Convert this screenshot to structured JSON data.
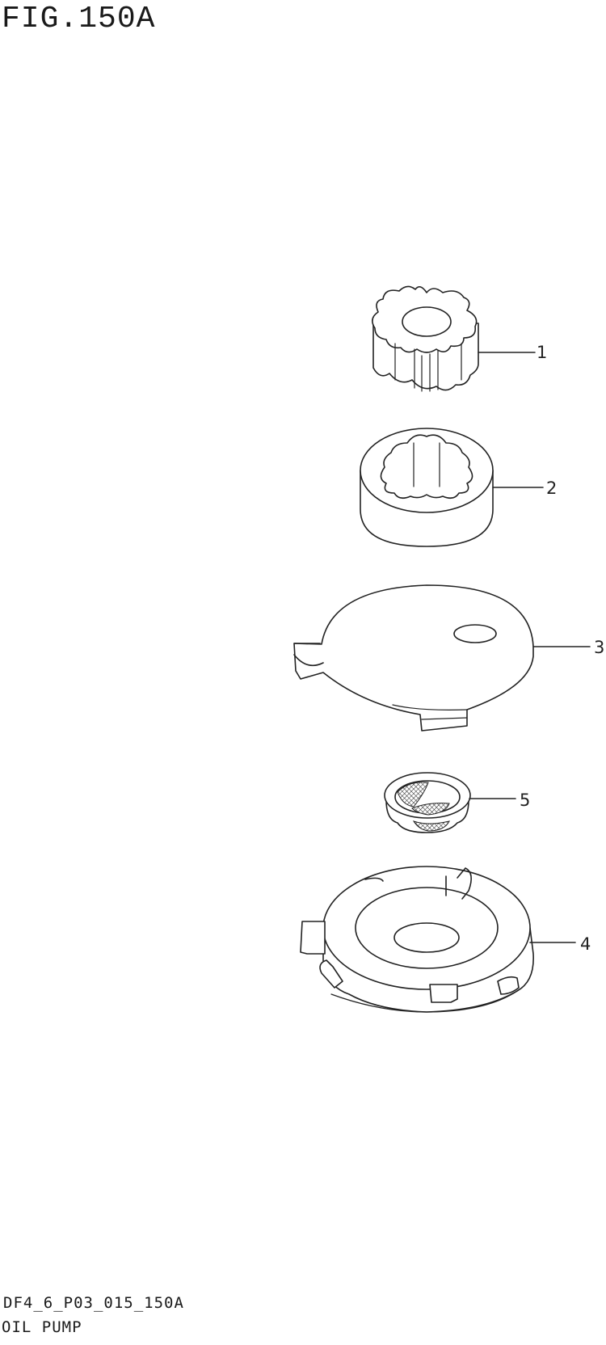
{
  "figure": {
    "title": "FIG.150A",
    "code": "DF4_6_P03_015_150A",
    "name": "OIL PUMP"
  },
  "callouts": [
    {
      "part": "inner-rotor",
      "label": "1"
    },
    {
      "part": "outer-rotor",
      "label": "2"
    },
    {
      "part": "pump-cover-plate",
      "label": "3"
    },
    {
      "part": "oil-pump-case",
      "label": "4"
    },
    {
      "part": "oil-strainer",
      "label": "5"
    }
  ]
}
